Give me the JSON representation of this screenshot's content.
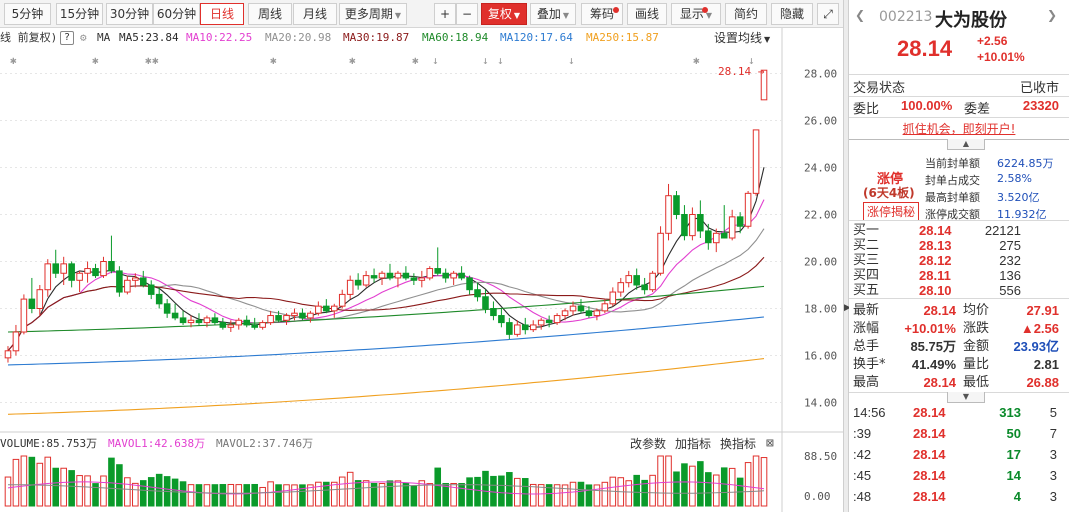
{
  "toolbar": {
    "periods": [
      "5分钟",
      "15分钟",
      "30分钟",
      "60分钟",
      "日线",
      "周线",
      "月线",
      "更多周期"
    ],
    "zoom_in": "+",
    "zoom_out": "−",
    "fq": "复权",
    "overlay": "叠加",
    "chip": "筹码",
    "draw": "画线",
    "display": "显示",
    "simple": "简约",
    "hide": "隐藏"
  },
  "ma_bar": {
    "prefix": "线 前复权)",
    "help": "?",
    "ma": "MA",
    "ma5": "MA5:23.84",
    "ma10": "MA10:22.25",
    "ma20": "MA20:20.98",
    "ma30": "MA30:19.87",
    "ma60": "MA60:18.94",
    "ma120": "MA120:17.64",
    "ma250": "MA250:15.87",
    "settings": "设置均线"
  },
  "colors": {
    "up": "#e0302c",
    "down": "#0a9a2a",
    "ma5": "#2b2b2b",
    "ma10": "#e23fd0",
    "ma20": "#909090",
    "ma30": "#8b1a1a",
    "ma60": "#1f8a2a",
    "ma120": "#2d7bd1",
    "ma250": "#f0a020"
  },
  "price_axis": [
    "28.00",
    "26.00",
    "24.00",
    "22.00",
    "20.00",
    "18.00",
    "16.00",
    "14.00"
  ],
  "last_price_label": "28.14",
  "vol_bar": {
    "vol": "VOLUME:85.753万",
    "mavol1": "MAVOL1:42.638万",
    "mavol2": "MAVOL2:37.746万",
    "params": "改参数",
    "add": "加指标",
    "swap": "换指标",
    "close": "⊠"
  },
  "vol_axis": [
    "88.50",
    "0.00"
  ],
  "chart_data": {
    "type": "candlestick",
    "ylim": [
      13,
      29
    ],
    "candles": [
      [
        15.9,
        16.4,
        15.7,
        16.2
      ],
      [
        16.2,
        17.3,
        16.0,
        17.0
      ],
      [
        17.0,
        18.6,
        16.9,
        18.4
      ],
      [
        18.4,
        19.3,
        17.8,
        18.0
      ],
      [
        18.0,
        19.0,
        17.7,
        18.8
      ],
      [
        18.8,
        20.1,
        18.5,
        19.9
      ],
      [
        19.9,
        20.5,
        19.3,
        19.5
      ],
      [
        19.5,
        20.2,
        19.0,
        19.9
      ],
      [
        19.9,
        20.0,
        18.9,
        19.2
      ],
      [
        19.2,
        19.6,
        18.7,
        19.5
      ],
      [
        19.5,
        20.0,
        19.1,
        19.7
      ],
      [
        19.7,
        19.9,
        19.3,
        19.4
      ],
      [
        19.4,
        20.2,
        19.3,
        20.0
      ],
      [
        20.0,
        21.1,
        19.5,
        19.6
      ],
      [
        19.6,
        19.8,
        18.5,
        18.7
      ],
      [
        18.7,
        19.4,
        18.6,
        19.2
      ],
      [
        19.2,
        19.5,
        18.9,
        19.3
      ],
      [
        19.3,
        19.6,
        18.9,
        19.0
      ],
      [
        19.0,
        19.2,
        18.4,
        18.6
      ],
      [
        18.6,
        18.9,
        18.0,
        18.2
      ],
      [
        18.2,
        18.4,
        17.6,
        17.8
      ],
      [
        17.8,
        18.2,
        17.5,
        17.6
      ],
      [
        17.6,
        17.9,
        17.3,
        17.4
      ],
      [
        17.4,
        17.7,
        17.2,
        17.5
      ],
      [
        17.5,
        17.8,
        17.3,
        17.4
      ],
      [
        17.4,
        17.7,
        17.2,
        17.6
      ],
      [
        17.6,
        17.8,
        17.3,
        17.4
      ],
      [
        17.4,
        17.6,
        17.1,
        17.2
      ],
      [
        17.2,
        17.5,
        17.0,
        17.3
      ],
      [
        17.3,
        17.6,
        17.1,
        17.5
      ],
      [
        17.5,
        17.7,
        17.2,
        17.3
      ],
      [
        17.3,
        17.6,
        17.1,
        17.2
      ],
      [
        17.2,
        17.5,
        17.1,
        17.4
      ],
      [
        17.4,
        17.9,
        17.3,
        17.7
      ],
      [
        17.7,
        17.9,
        17.4,
        17.5
      ],
      [
        17.5,
        17.8,
        17.3,
        17.7
      ],
      [
        17.7,
        18.0,
        17.5,
        17.8
      ],
      [
        17.8,
        18.0,
        17.5,
        17.6
      ],
      [
        17.6,
        17.9,
        17.4,
        17.8
      ],
      [
        17.8,
        18.3,
        17.7,
        18.1
      ],
      [
        18.1,
        18.4,
        17.8,
        17.9
      ],
      [
        17.9,
        18.2,
        17.6,
        18.1
      ],
      [
        18.1,
        18.8,
        18.0,
        18.6
      ],
      [
        18.6,
        19.4,
        18.4,
        19.2
      ],
      [
        19.2,
        19.5,
        18.8,
        19.0
      ],
      [
        19.0,
        19.6,
        18.9,
        19.4
      ],
      [
        19.4,
        19.7,
        19.1,
        19.3
      ],
      [
        19.3,
        19.6,
        19.0,
        19.5
      ],
      [
        19.5,
        19.9,
        19.2,
        19.3
      ],
      [
        19.3,
        19.6,
        18.9,
        19.5
      ],
      [
        19.5,
        19.8,
        19.2,
        19.3
      ],
      [
        19.3,
        19.5,
        19.0,
        19.2
      ],
      [
        19.2,
        19.6,
        18.9,
        19.3
      ],
      [
        19.3,
        19.8,
        19.2,
        19.7
      ],
      [
        19.7,
        20.6,
        19.4,
        19.5
      ],
      [
        19.5,
        19.7,
        19.1,
        19.3
      ],
      [
        19.3,
        19.6,
        19.0,
        19.5
      ],
      [
        19.5,
        19.8,
        19.2,
        19.3
      ],
      [
        19.3,
        19.4,
        18.6,
        18.8
      ],
      [
        18.8,
        19.1,
        18.3,
        18.5
      ],
      [
        18.5,
        18.8,
        17.8,
        18.0
      ],
      [
        18.0,
        18.3,
        17.5,
        17.7
      ],
      [
        17.7,
        18.0,
        17.2,
        17.4
      ],
      [
        17.4,
        17.6,
        16.7,
        16.9
      ],
      [
        16.9,
        17.5,
        16.8,
        17.3
      ],
      [
        17.3,
        17.6,
        16.9,
        17.1
      ],
      [
        17.1,
        17.5,
        17.0,
        17.3
      ],
      [
        17.3,
        17.6,
        17.1,
        17.5
      ],
      [
        17.5,
        17.7,
        17.2,
        17.4
      ],
      [
        17.4,
        17.8,
        17.3,
        17.7
      ],
      [
        17.7,
        18.0,
        17.5,
        17.9
      ],
      [
        17.9,
        18.3,
        17.7,
        18.1
      ],
      [
        18.1,
        18.4,
        17.8,
        17.9
      ],
      [
        17.9,
        18.1,
        17.6,
        17.7
      ],
      [
        17.7,
        18.0,
        17.5,
        17.9
      ],
      [
        17.9,
        18.4,
        17.8,
        18.2
      ],
      [
        18.2,
        18.9,
        18.1,
        18.7
      ],
      [
        18.7,
        19.3,
        18.5,
        19.1
      ],
      [
        19.1,
        19.6,
        18.9,
        19.4
      ],
      [
        19.4,
        19.7,
        18.8,
        19.0
      ],
      [
        19.0,
        19.3,
        18.6,
        18.8
      ],
      [
        18.8,
        19.6,
        18.7,
        19.5
      ],
      [
        19.5,
        21.5,
        19.4,
        21.2
      ],
      [
        21.2,
        23.3,
        20.9,
        22.8
      ],
      [
        22.8,
        23.0,
        21.8,
        22.0
      ],
      [
        22.0,
        22.4,
        20.9,
        21.1
      ],
      [
        21.1,
        22.3,
        20.9,
        22.0
      ],
      [
        22.0,
        22.6,
        21.0,
        21.3
      ],
      [
        21.3,
        21.6,
        20.5,
        20.8
      ],
      [
        20.8,
        21.4,
        20.4,
        21.2
      ],
      [
        21.2,
        22.4,
        21.1,
        21.0
      ],
      [
        21.0,
        22.2,
        20.9,
        21.9
      ],
      [
        21.9,
        22.1,
        21.2,
        21.5
      ],
      [
        21.5,
        23.0,
        21.4,
        22.9
      ],
      [
        22.9,
        25.6,
        22.8,
        25.6
      ]
    ],
    "last": {
      "open": 26.88,
      "high": 28.14,
      "low": 26.88,
      "close": 28.14
    },
    "volume_max": 88.5,
    "volume_last": 85.753,
    "mavol1": 42.638,
    "mavol2": 37.746,
    "mas": {
      "ma5": 23.84,
      "ma10": 22.25,
      "ma20": 20.98,
      "ma30": 19.87,
      "ma60": 18.94,
      "ma120": 17.64,
      "ma250": 15.87
    }
  },
  "stock": {
    "code": "002213",
    "name": "大为股份",
    "price": "28.14",
    "change": "+2.56",
    "pct": "+10.01%"
  },
  "status": {
    "label": "交易状态",
    "value": "已收市"
  },
  "weibi": {
    "label": "委比",
    "value": "100.00%",
    "diff_label": "委差",
    "diff_value": "23320"
  },
  "ad": "抓住机会，即刻开户!",
  "limit": {
    "tag": "涨停",
    "days": "(6天4板)",
    "btn": "涨停揭秘",
    "rows": [
      [
        "当前封单额",
        "6224.85万"
      ],
      [
        "封单占成交",
        "2.58%"
      ],
      [
        "最高封单额",
        "3.520亿"
      ],
      [
        "涨停成交额",
        "11.932亿"
      ]
    ]
  },
  "book": [
    [
      "买一",
      "28.14",
      "22121"
    ],
    [
      "买二",
      "28.13",
      "275"
    ],
    [
      "买三",
      "28.12",
      "232"
    ],
    [
      "买四",
      "28.11",
      "136"
    ],
    [
      "买五",
      "28.10",
      "556"
    ]
  ],
  "quote": [
    [
      "最新",
      "28.14",
      "均价",
      "27.91"
    ],
    [
      "涨幅",
      "+10.01%",
      "涨跌",
      "▲2.56"
    ],
    [
      "总手",
      "85.75万",
      "金额",
      "23.93亿"
    ],
    [
      "换手*",
      "41.49%",
      "量比",
      "2.81"
    ],
    [
      "最高",
      "28.14",
      "最低",
      "26.88"
    ]
  ],
  "ticks": [
    [
      "14:56",
      "28.14",
      "313",
      "5"
    ],
    [
      ":39",
      "28.14",
      "50",
      "7"
    ],
    [
      ":42",
      "28.14",
      "17",
      "3"
    ],
    [
      ":45",
      "28.14",
      "14",
      "3"
    ],
    [
      ":48",
      "28.14",
      "4",
      "3"
    ]
  ]
}
